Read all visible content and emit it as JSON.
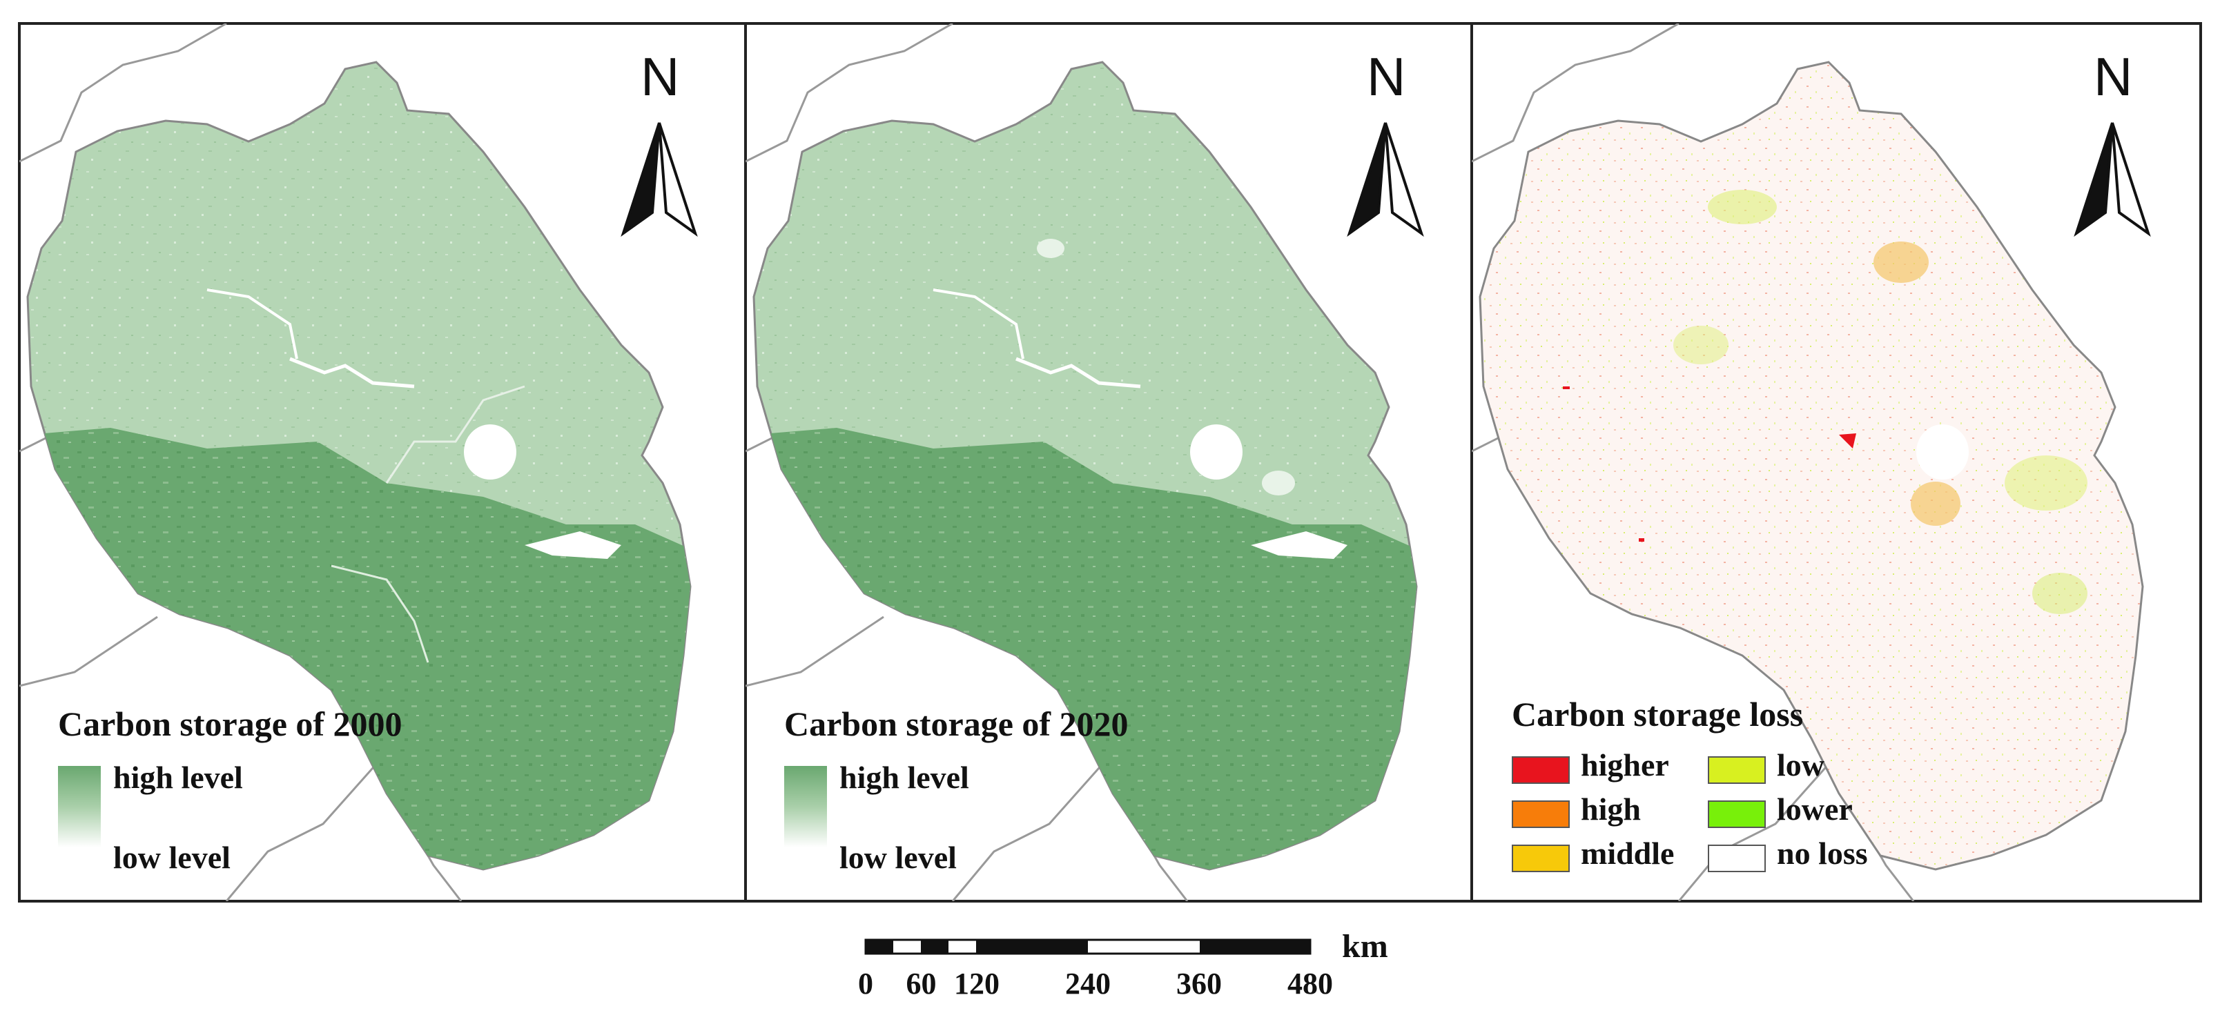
{
  "panels": [
    {
      "title": "Carbon storage of 2000",
      "legend_high": "high level",
      "legend_low": "low level",
      "north_label": "N"
    },
    {
      "title": "Carbon storage of 2020",
      "legend_high": "high level",
      "legend_low": "low level",
      "north_label": "N"
    },
    {
      "title": "Carbon storage loss",
      "north_label": "N",
      "legend_items": [
        {
          "label": "higher",
          "color": "#e8141e"
        },
        {
          "label": "low",
          "color": "#d8f020"
        },
        {
          "label": "high",
          "color": "#f77d0a"
        },
        {
          "label": "lower",
          "color": "#78f00a"
        },
        {
          "label": "middle",
          "color": "#f7c90a"
        },
        {
          "label": "no loss",
          "color": "#ffffff"
        }
      ]
    }
  ],
  "colors": {
    "forest_dark": "#6aa870",
    "plain_light": "#b5d6b5",
    "loss_background": "#fdf3ef",
    "boundary": "#888888"
  },
  "scale_bar": {
    "ticks": [
      "0",
      "60",
      "120",
      "240",
      "360",
      "480"
    ],
    "unit": "km"
  }
}
